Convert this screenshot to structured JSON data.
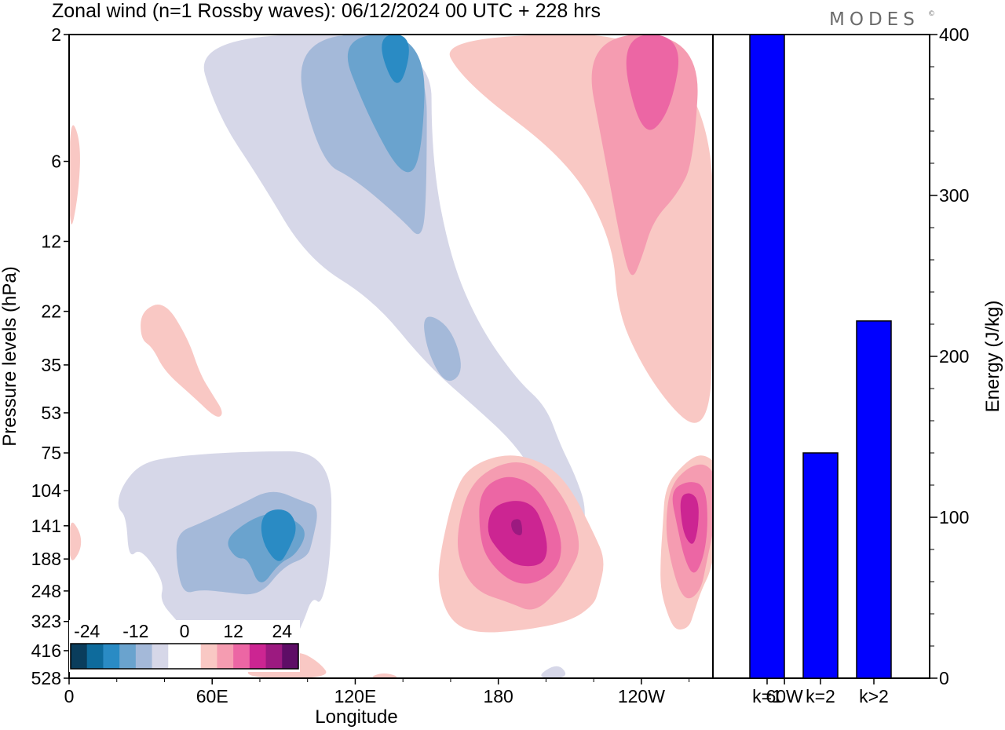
{
  "header": {
    "title": "Zonal wind (n=1 Rossby waves):  06/12/2024  00 UTC  + 228 hrs",
    "logo": "MODES",
    "logo_mark": "©"
  },
  "chart_data": [
    {
      "type": "heatmap",
      "xlabel": "Longitude",
      "ylabel": "Pressure levels (hPa)",
      "x_ticks": [
        "0",
        "60E",
        "120E",
        "180",
        "120W",
        "60W"
      ],
      "y_levels": [
        "2",
        "6",
        "12",
        "22",
        "35",
        "53",
        "75",
        "104",
        "141",
        "188",
        "248",
        "323",
        "416",
        "528"
      ],
      "colorbar": {
        "tick_labels": [
          "-24",
          "-12",
          "0",
          "12",
          "24"
        ],
        "colors": [
          "#0a3d5c",
          "#0e6b9c",
          "#2a8bc4",
          "#6aa3ce",
          "#a4b9d9",
          "#d6d7e8",
          "#ffffff",
          "#ffffff",
          "#f9c8c4",
          "#f59cb1",
          "#ec66a4",
          "#cc2592",
          "#9c1a80",
          "#5e0d66"
        ]
      },
      "regions": [
        {
          "color": "#d6d7e8",
          "poly": [
            [
              52,
              2
            ],
            [
              152,
              2
            ],
            [
              152,
              6
            ],
            [
              160,
              14
            ],
            [
              172,
              25
            ],
            [
              188,
              40
            ],
            [
              200,
              50
            ],
            [
              206,
              70
            ],
            [
              212,
              90
            ],
            [
              217,
              120
            ],
            [
              215,
              160
            ],
            [
              212,
              185
            ],
            [
              207,
              160
            ],
            [
              203,
              125
            ],
            [
              196,
              92
            ],
            [
              186,
              68
            ],
            [
              172,
              52
            ],
            [
              150,
              35
            ],
            [
              128,
              20
            ],
            [
              100,
              14
            ],
            [
              80,
              7
            ],
            [
              62,
              4
            ]
          ]
        },
        {
          "color": "#d6d7e8",
          "poly": [
            [
              22,
              100
            ],
            [
              30,
              82
            ],
            [
              45,
              77
            ],
            [
              75,
              74
            ],
            [
              110,
              74
            ],
            [
              110,
              180
            ],
            [
              106,
              282
            ],
            [
              102,
              260
            ],
            [
              98,
              330
            ],
            [
              93,
              400
            ],
            [
              84,
              470
            ],
            [
              74,
              390
            ],
            [
              62,
              340
            ],
            [
              50,
              360
            ],
            [
              45,
              320
            ],
            [
              38,
              270
            ],
            [
              40,
              230
            ],
            [
              30,
              170
            ],
            [
              25,
              188
            ],
            [
              24,
              130
            ],
            [
              20,
              120
            ]
          ]
        },
        {
          "color": "#d6d7e8",
          "poly": [
            [
              195,
              528
            ],
            [
              205,
              460
            ],
            [
              210,
              528
            ]
          ]
        },
        {
          "color": "#a4b9d9",
          "poly": [
            [
              92,
              2
            ],
            [
              150,
              2
            ],
            [
              150,
              8
            ],
            [
              148,
              12
            ],
            [
              140,
              10
            ],
            [
              120,
              7
            ],
            [
              105,
              6
            ]
          ]
        },
        {
          "color": "#a4b9d9",
          "poly": [
            [
              148,
              22
            ],
            [
              160,
              25
            ],
            [
              166,
              37
            ],
            [
              158,
              42
            ],
            [
              150,
              31
            ]
          ]
        },
        {
          "color": "#a4b9d9",
          "poly": [
            [
              45,
              150
            ],
            [
              55,
              138
            ],
            [
              72,
              117
            ],
            [
              85,
              102
            ],
            [
              98,
              114
            ],
            [
              105,
              120
            ],
            [
              102,
              162
            ],
            [
              100,
              185
            ],
            [
              90,
              200
            ],
            [
              80,
              260
            ],
            [
              65,
              250
            ],
            [
              55,
              245
            ],
            [
              48,
              255
            ],
            [
              45,
              200
            ]
          ]
        },
        {
          "color": "#6aa3ce",
          "poly": [
            [
              112,
              2
            ],
            [
              150,
              2
            ],
            [
              148,
              6
            ],
            [
              140,
              7
            ],
            [
              125,
              4
            ]
          ]
        },
        {
          "color": "#6aa3ce",
          "poly": [
            [
              65,
              160
            ],
            [
              75,
              135
            ],
            [
              85,
              125
            ],
            [
              95,
              134
            ],
            [
              100,
              150
            ],
            [
              95,
              182
            ],
            [
              88,
              195
            ],
            [
              80,
              245
            ],
            [
              75,
              186
            ],
            [
              70,
              188
            ]
          ]
        },
        {
          "color": "#2a8bc4",
          "poly": [
            [
              128,
              2
            ],
            [
              145,
              2
            ],
            [
              138,
              3.5
            ]
          ]
        },
        {
          "color": "#2a8bc4",
          "poly": [
            [
              83,
              123
            ],
            [
              92,
              122
            ],
            [
              96,
              143
            ],
            [
              92,
              175
            ],
            [
              88,
              198
            ],
            [
              82,
              170
            ],
            [
              80,
              140
            ]
          ]
        },
        {
          "color": "#f9c8c4",
          "poly": [
            [
              0,
              4
            ],
            [
              5,
              5
            ],
            [
              4,
              8
            ],
            [
              0,
              12
            ]
          ]
        },
        {
          "color": "#f9c8c4",
          "poly": [
            [
              0,
              130
            ],
            [
              5,
              150
            ],
            [
              5,
              175
            ],
            [
              0,
              200
            ]
          ]
        },
        {
          "color": "#f9c8c4",
          "poly": [
            [
              30,
              22
            ],
            [
              40,
              20
            ],
            [
              50,
              28
            ],
            [
              55,
              38
            ],
            [
              60,
              45
            ],
            [
              65,
              53
            ],
            [
              62,
              56
            ],
            [
              52,
              46
            ],
            [
              40,
              37
            ],
            [
              35,
              30
            ],
            [
              30,
              28
            ]
          ]
        },
        {
          "color": "#f9c8c4",
          "poly": [
            [
              155,
              2
            ],
            [
              270,
              2
            ],
            [
              270,
              35
            ],
            [
              268,
              53
            ],
            [
              262,
              60
            ],
            [
              252,
              50
            ],
            [
              240,
              35
            ],
            [
              230,
              22
            ],
            [
              228,
              12
            ],
            [
              210,
              6
            ],
            [
              165,
              3
            ]
          ]
        },
        {
          "color": "#f9c8c4",
          "poly": [
            [
              162,
              100
            ],
            [
              170,
              82
            ],
            [
              185,
              75
            ],
            [
              200,
              82
            ],
            [
              210,
              100
            ],
            [
              220,
              150
            ],
            [
              225,
              190
            ],
            [
              222,
              248
            ],
            [
              220,
              280
            ],
            [
              210,
              323
            ],
            [
              190,
              350
            ],
            [
              170,
              358
            ],
            [
              160,
              323
            ],
            [
              155,
              248
            ],
            [
              155,
              188
            ]
          ]
        },
        {
          "color": "#f9c8c4",
          "poly": [
            [
              250,
              100
            ],
            [
              258,
              82
            ],
            [
              265,
              75
            ],
            [
              272,
              82
            ],
            [
              275,
              100
            ],
            [
              270,
              200
            ],
            [
              265,
              248
            ],
            [
              262,
              300
            ],
            [
              260,
              340
            ],
            [
              255,
              350
            ],
            [
              252,
              323
            ],
            [
              248,
              248
            ],
            [
              248,
              188
            ],
            [
              249,
              140
            ]
          ]
        },
        {
          "color": "#f9c8c4",
          "poly": [
            [
              75,
              480
            ],
            [
              95,
              410
            ],
            [
              105,
              460
            ],
            [
              110,
              528
            ],
            [
              75,
              528
            ]
          ]
        },
        {
          "color": "#f9c8c4",
          "poly": [
            [
              125,
              528
            ],
            [
              132,
              500
            ],
            [
              140,
              528
            ]
          ]
        },
        {
          "color": "#f59cb1",
          "poly": [
            [
              215,
              2
            ],
            [
              265,
              2
            ],
            [
              262,
              6
            ],
            [
              255,
              8
            ],
            [
              245,
              10
            ],
            [
              240,
              14
            ],
            [
              236,
              17
            ],
            [
              232,
              13
            ],
            [
              225,
              6
            ]
          ]
        },
        {
          "color": "#f59cb1",
          "poly": [
            [
              168,
              100
            ],
            [
              178,
              84
            ],
            [
              190,
              80
            ],
            [
              200,
              90
            ],
            [
              210,
              120
            ],
            [
              215,
              170
            ],
            [
              210,
              210
            ],
            [
              205,
              248
            ],
            [
              195,
              300
            ],
            [
              185,
              275
            ],
            [
              170,
              248
            ],
            [
              163,
              188
            ],
            [
              163,
              141
            ]
          ]
        },
        {
          "color": "#f59cb1",
          "poly": [
            [
              252,
              100
            ],
            [
              260,
              84
            ],
            [
              268,
              82
            ],
            [
              273,
              100
            ],
            [
              270,
              150
            ],
            [
              267,
              200
            ],
            [
              265,
              245
            ],
            [
              260,
              270
            ],
            [
              256,
              250
            ],
            [
              252,
              188
            ],
            [
              250,
              141
            ]
          ]
        },
        {
          "color": "#ec66a4",
          "poly": [
            [
              230,
              2
            ],
            [
              258,
              2
            ],
            [
              252,
              4
            ],
            [
              240,
              5
            ]
          ]
        },
        {
          "color": "#ec66a4",
          "poly": [
            [
              172,
              104
            ],
            [
              183,
              90
            ],
            [
              195,
              98
            ],
            [
              203,
              128
            ],
            [
              207,
              165
            ],
            [
              205,
              204
            ],
            [
              195,
              235
            ],
            [
              185,
              230
            ],
            [
              175,
              188
            ],
            [
              172,
              150
            ]
          ]
        },
        {
          "color": "#ec66a4",
          "poly": [
            [
              252,
              104
            ],
            [
              260,
              95
            ],
            [
              267,
              100
            ],
            [
              268,
              141
            ],
            [
              266,
              188
            ],
            [
              262,
              220
            ],
            [
              258,
              188
            ],
            [
              255,
              141
            ]
          ]
        },
        {
          "color": "#cc2592",
          "poly": [
            [
              177,
              120
            ],
            [
              187,
              112
            ],
            [
              195,
              118
            ],
            [
              199,
              141
            ],
            [
              201,
              175
            ],
            [
              198,
              200
            ],
            [
              187,
              200
            ],
            [
              180,
              175
            ],
            [
              175,
              150
            ]
          ]
        },
        {
          "color": "#cc2592",
          "poly": [
            [
              256,
              110
            ],
            [
              260,
              105
            ],
            [
              264,
              112
            ],
            [
              264,
              141
            ],
            [
              262,
              168
            ],
            [
              259,
              160
            ],
            [
              257,
              141
            ]
          ]
        },
        {
          "color": "#9c1a80",
          "poly": [
            [
              185,
              135
            ],
            [
              189,
              132
            ],
            [
              190,
              141
            ],
            [
              190,
              155
            ],
            [
              186,
              150
            ]
          ]
        }
      ]
    },
    {
      "type": "bar",
      "categories": [
        "k=1",
        "k=2",
        "k>2"
      ],
      "values": [
        400,
        140,
        222
      ],
      "ylabel": "Energy (J/kg)",
      "ylim": [
        0,
        400
      ],
      "y_ticks": [
        "0",
        "100",
        "200",
        "300",
        "400"
      ],
      "bar_color": "#0000ff"
    }
  ]
}
